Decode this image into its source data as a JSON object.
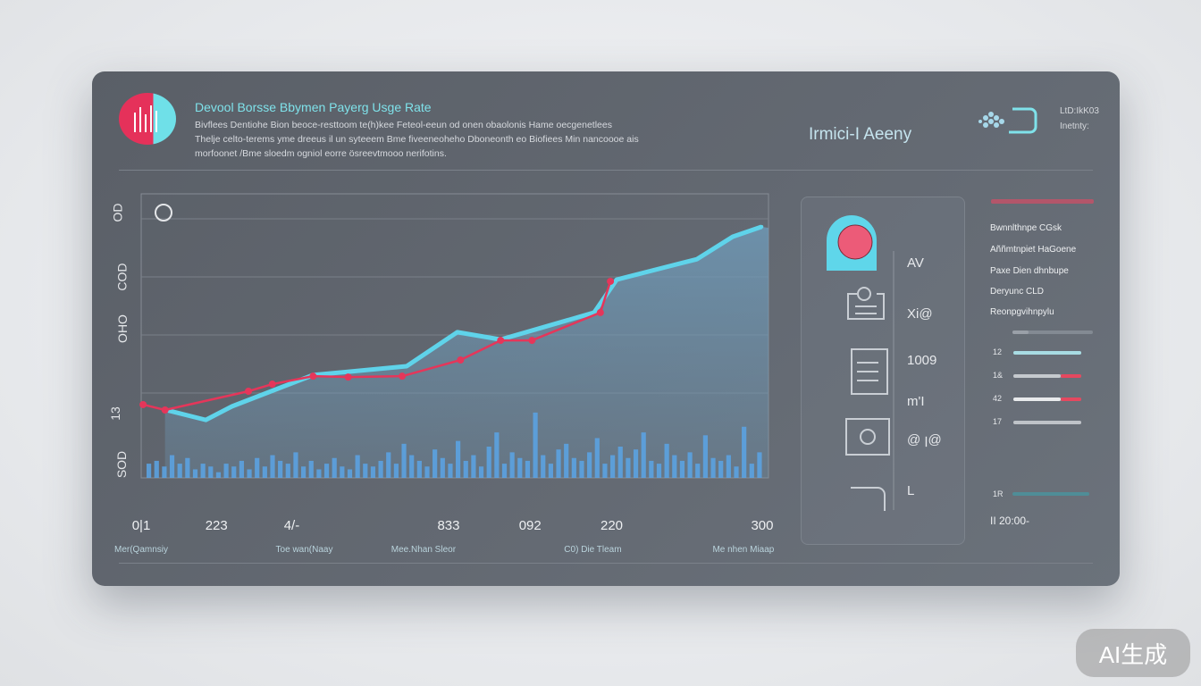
{
  "header": {
    "title": "Devool Borsse Bbymen Payerg Usge Rate",
    "description": [
      "Bivflees Dentiohe Bion beoce-resttoom te(h)kee Feteol-eeun od onen obaolonis Hame oecgenetlees",
      "Thelje celto-terems yme dreeus il un syteeem Bme fiveeneoheho Dboneonth eo Biofiees Min nancoooe ais",
      "morfoonet /Bme sloedm ogniol eorre ösreevtmooo nerifotins."
    ],
    "right_title": "Irmici-I Aeeny",
    "meta": [
      "LtD:IkK03",
      "Inetnty:"
    ]
  },
  "chart_data": {
    "type": "line",
    "title": "Devool Borsse Bbymen Payerg Usge Rate",
    "xlim": [
      0,
      100
    ],
    "ylim": [
      0,
      100
    ],
    "y_tick_labels": [
      "OD",
      "COD",
      "OHO",
      "13",
      "SOD"
    ],
    "x_tick_labels": [
      {
        "label": "0|1",
        "x": 0
      },
      {
        "label": "223",
        "x": 12
      },
      {
        "label": "4/-",
        "x": 24
      },
      {
        "label": "833",
        "x": 49
      },
      {
        "label": "092",
        "x": 62
      },
      {
        "label": "220",
        "x": 75
      },
      {
        "label": "300",
        "x": 99
      }
    ],
    "x_sub_labels": [
      {
        "label": "Mer(Qamnsiy",
        "x": 0
      },
      {
        "label": "Toe wan(Naay",
        "x": 26
      },
      {
        "label": "Mee.Nhan Sleor",
        "x": 45
      },
      {
        "label": "C0) Die Tleam",
        "x": 72
      },
      {
        "label": "Me nhen Miaap",
        "x": 96
      }
    ],
    "series": [
      {
        "name": "cyan",
        "color": "#5fd3ea",
        "points": [
          [
            3.8,
            24
          ],
          [
            10.3,
            20.4
          ],
          [
            14.5,
            25.2
          ],
          [
            27.4,
            36.2
          ],
          [
            42.3,
            39.3
          ],
          [
            50.4,
            51.3
          ],
          [
            57.3,
            48.7
          ],
          [
            72.2,
            58.2
          ],
          [
            75.8,
            69.8
          ],
          [
            88.6,
            77
          ],
          [
            94.3,
            84.9
          ],
          [
            98.9,
            88.4
          ]
        ]
      },
      {
        "name": "red",
        "color": "#e5365a",
        "points": [
          [
            0.3,
            25.8
          ],
          [
            3.8,
            23.9
          ],
          [
            17.1,
            30.5
          ],
          [
            20.9,
            33
          ],
          [
            27.4,
            35.8
          ],
          [
            33,
            35.5
          ],
          [
            41.6,
            35.8
          ],
          [
            50.9,
            41.5
          ],
          [
            57.3,
            48.4
          ],
          [
            62.3,
            48.4
          ],
          [
            73.2,
            58.2
          ],
          [
            74.8,
            69.2
          ]
        ]
      }
    ],
    "bars": [
      5,
      6,
      4,
      8,
      5,
      7,
      3,
      5,
      4,
      2,
      5,
      4,
      6,
      3,
      7,
      4,
      8,
      6,
      5,
      9,
      4,
      6,
      3,
      5,
      7,
      4,
      3,
      8,
      5,
      4,
      6,
      9,
      5,
      12,
      8,
      6,
      4,
      10,
      7,
      5,
      13,
      6,
      8,
      4,
      11,
      16,
      5,
      9,
      7,
      6,
      23,
      8,
      5,
      10,
      12,
      7,
      6,
      9,
      14,
      5,
      8,
      11,
      7,
      10,
      16,
      6,
      5,
      12,
      8,
      6,
      9,
      5,
      15,
      7,
      6,
      8,
      4,
      18,
      5,
      9
    ]
  },
  "panel": {
    "values": [
      "AV",
      "Xi@",
      "1009",
      "m'I",
      "@ ꞁ@",
      "L"
    ]
  },
  "side": {
    "items": [
      "Bwnnlthnpe CGsk",
      "Aññmtnpiet HaGoene",
      "Paxe Dien dhnbupe",
      "Deryunc CLD",
      "Reonpgvihnpylu"
    ],
    "bars": [
      {
        "label": "",
        "fill": 0.2,
        "color": "#9aa0a8",
        "red": 0
      },
      {
        "label": "12",
        "fill": 1.0,
        "color": "#a8dce3",
        "red": 0
      },
      {
        "label": "1&",
        "fill": 0.7,
        "color": "#c5c9ce",
        "red": 0.3
      },
      {
        "label": "42",
        "fill": 0.7,
        "color": "#e8eaec",
        "red": 0.3
      },
      {
        "label": "17",
        "fill": 1.0,
        "color": "#bfc3c8",
        "red": 0
      }
    ],
    "bottom_label": "1R",
    "time": "II  20:00-"
  },
  "watermark": "AI生成"
}
